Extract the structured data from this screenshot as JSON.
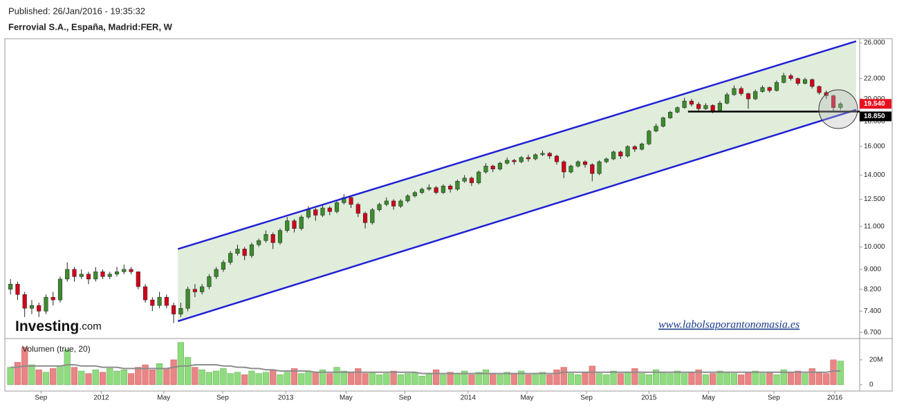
{
  "header": {
    "published": "Published: 26/Jan/2016 - 19:35:32",
    "title": "Ferrovial S.A., España, Madrid:FER, W"
  },
  "chart_data": [
    {
      "type": "candlestick",
      "log_scale": true,
      "grid": false,
      "up_color": "#3d8b2f",
      "down_color": "#d0021b",
      "xlim": [
        -0.7,
        119.7
      ],
      "ylim": [
        6.51,
        26.43
      ],
      "yticks": [
        {
          "value": 6.7,
          "label": "6.700"
        },
        {
          "value": 7.4,
          "label": "7.400"
        },
        {
          "value": 8.2,
          "label": "8.200"
        },
        {
          "value": 9,
          "label": "9.000"
        },
        {
          "value": 10,
          "label": "10.000"
        },
        {
          "value": 11,
          "label": "11.000"
        },
        {
          "value": 12.5,
          "label": "12.500"
        },
        {
          "value": 14,
          "label": "14.000"
        },
        {
          "value": 16,
          "label": "16.000"
        },
        {
          "value": 18,
          "label": "18.000"
        },
        {
          "value": 20,
          "label": "20.000"
        },
        {
          "value": 22,
          "label": "22.000"
        },
        {
          "value": 26,
          "label": "26.000"
        }
      ],
      "xticks": [
        {
          "value": 4.3,
          "label": "Sep"
        },
        {
          "value": 12.8,
          "label": "2012"
        },
        {
          "value": 21.6,
          "label": "May"
        },
        {
          "value": 29.9,
          "label": "Sep"
        },
        {
          "value": 38.8,
          "label": "2013"
        },
        {
          "value": 47.3,
          "label": "May"
        },
        {
          "value": 55.6,
          "label": "Sep"
        },
        {
          "value": 64.5,
          "label": "2014"
        },
        {
          "value": 72.8,
          "label": "May"
        },
        {
          "value": 81.2,
          "label": "Sep"
        },
        {
          "value": 90.0,
          "label": "2015"
        },
        {
          "value": 98.4,
          "label": "May"
        },
        {
          "value": 107.6,
          "label": "Sep"
        },
        {
          "value": 116.2,
          "label": "2016"
        }
      ],
      "ohlc": [
        [
          8.2,
          8.6,
          8.0,
          8.4
        ],
        [
          8.4,
          8.5,
          7.8,
          8.0
        ],
        [
          8.0,
          8.1,
          7.2,
          7.5
        ],
        [
          7.5,
          7.8,
          7.3,
          7.6
        ],
        [
          7.6,
          7.7,
          7.2,
          7.4
        ],
        [
          7.4,
          8.0,
          7.3,
          7.9
        ],
        [
          7.9,
          8.1,
          7.6,
          7.8
        ],
        [
          7.8,
          8.7,
          7.7,
          8.6
        ],
        [
          8.6,
          9.3,
          8.5,
          9.0
        ],
        [
          9.0,
          9.1,
          8.5,
          8.7
        ],
        [
          8.7,
          9.0,
          8.6,
          8.8
        ],
        [
          8.8,
          8.9,
          8.4,
          8.6
        ],
        [
          8.6,
          9.1,
          8.5,
          8.9
        ],
        [
          8.9,
          9.0,
          8.6,
          8.7
        ],
        [
          8.7,
          8.9,
          8.6,
          8.8
        ],
        [
          8.8,
          9.1,
          8.7,
          8.9
        ],
        [
          8.9,
          9.2,
          8.8,
          9.0
        ],
        [
          9.0,
          9.1,
          8.8,
          8.9
        ],
        [
          8.9,
          8.9,
          8.2,
          8.3
        ],
        [
          8.3,
          8.4,
          7.7,
          7.8
        ],
        [
          7.8,
          7.9,
          7.4,
          7.6
        ],
        [
          7.6,
          8.1,
          7.5,
          7.9
        ],
        [
          7.9,
          8.0,
          7.5,
          7.6
        ],
        [
          7.6,
          7.7,
          7.0,
          7.3
        ],
        [
          7.3,
          7.7,
          7.2,
          7.5
        ],
        [
          7.5,
          8.3,
          7.4,
          8.2
        ],
        [
          8.2,
          8.4,
          7.9,
          8.1
        ],
        [
          8.1,
          8.4,
          8.0,
          8.3
        ],
        [
          8.3,
          8.8,
          8.2,
          8.7
        ],
        [
          8.7,
          9.1,
          8.6,
          9.0
        ],
        [
          9.0,
          9.4,
          8.9,
          9.3
        ],
        [
          9.3,
          9.8,
          9.2,
          9.7
        ],
        [
          9.7,
          10.1,
          9.6,
          9.9
        ],
        [
          9.9,
          10.0,
          9.4,
          9.6
        ],
        [
          9.6,
          10.2,
          9.5,
          10.1
        ],
        [
          10.1,
          10.4,
          10.0,
          10.3
        ],
        [
          10.3,
          10.8,
          10.2,
          10.6
        ],
        [
          10.6,
          10.7,
          9.9,
          10.2
        ],
        [
          10.2,
          10.9,
          10.1,
          10.8
        ],
        [
          10.8,
          11.5,
          10.7,
          11.3
        ],
        [
          11.3,
          11.4,
          10.7,
          10.9
        ],
        [
          10.9,
          11.6,
          10.8,
          11.5
        ],
        [
          11.5,
          12.1,
          11.4,
          11.9
        ],
        [
          11.9,
          12.0,
          11.3,
          11.6
        ],
        [
          11.6,
          12.2,
          11.5,
          12.0
        ],
        [
          12.0,
          12.1,
          11.6,
          11.8
        ],
        [
          11.8,
          12.4,
          11.7,
          12.3
        ],
        [
          12.3,
          12.8,
          12.2,
          12.6
        ],
        [
          12.6,
          12.7,
          12.0,
          12.2
        ],
        [
          12.2,
          12.3,
          11.5,
          11.7
        ],
        [
          11.7,
          11.8,
          10.9,
          11.2
        ],
        [
          11.2,
          12.0,
          11.1,
          11.9
        ],
        [
          11.9,
          12.3,
          11.8,
          12.2
        ],
        [
          12.2,
          12.6,
          12.1,
          12.4
        ],
        [
          12.4,
          12.5,
          11.9,
          12.1
        ],
        [
          12.1,
          12.5,
          12.0,
          12.4
        ],
        [
          12.4,
          12.8,
          12.3,
          12.7
        ],
        [
          12.7,
          13.0,
          12.6,
          12.9
        ],
        [
          12.9,
          13.2,
          12.8,
          13.1
        ],
        [
          13.1,
          13.4,
          13.0,
          13.2
        ],
        [
          13.2,
          13.3,
          12.8,
          12.9
        ],
        [
          12.9,
          13.4,
          12.8,
          13.3
        ],
        [
          13.3,
          13.4,
          12.9,
          13.1
        ],
        [
          13.1,
          13.7,
          13.0,
          13.6
        ],
        [
          13.6,
          14.0,
          13.5,
          13.8
        ],
        [
          13.8,
          13.9,
          13.3,
          13.5
        ],
        [
          13.5,
          14.3,
          13.4,
          14.2
        ],
        [
          14.2,
          14.8,
          14.1,
          14.6
        ],
        [
          14.6,
          14.7,
          14.2,
          14.4
        ],
        [
          14.4,
          14.9,
          14.3,
          14.8
        ],
        [
          14.8,
          15.2,
          14.7,
          15.0
        ],
        [
          15.0,
          15.1,
          14.7,
          14.9
        ],
        [
          14.9,
          15.3,
          14.8,
          15.2
        ],
        [
          15.2,
          15.4,
          14.9,
          15.1
        ],
        [
          15.1,
          15.5,
          15.0,
          15.4
        ],
        [
          15.4,
          15.7,
          15.3,
          15.5
        ],
        [
          15.5,
          15.6,
          15.1,
          15.3
        ],
        [
          15.3,
          15.4,
          14.7,
          14.9
        ],
        [
          14.9,
          15.0,
          13.8,
          14.2
        ],
        [
          14.2,
          14.7,
          14.1,
          14.6
        ],
        [
          14.6,
          15.0,
          14.5,
          14.9
        ],
        [
          14.9,
          15.0,
          14.5,
          14.7
        ],
        [
          14.7,
          14.8,
          13.6,
          14.1
        ],
        [
          14.1,
          15.0,
          14.0,
          14.9
        ],
        [
          14.9,
          15.2,
          14.8,
          15.1
        ],
        [
          15.1,
          15.7,
          15.0,
          15.6
        ],
        [
          15.6,
          15.7,
          15.1,
          15.3
        ],
        [
          15.3,
          16.1,
          15.2,
          16.0
        ],
        [
          16.0,
          16.1,
          15.6,
          15.8
        ],
        [
          15.8,
          16.3,
          15.7,
          16.2
        ],
        [
          16.2,
          17.3,
          16.1,
          17.2
        ],
        [
          17.2,
          17.8,
          17.1,
          17.6
        ],
        [
          17.6,
          18.4,
          17.5,
          18.3
        ],
        [
          18.3,
          18.9,
          18.2,
          18.8
        ],
        [
          18.8,
          19.3,
          18.7,
          19.2
        ],
        [
          19.2,
          20.1,
          19.1,
          19.8
        ],
        [
          19.8,
          20.0,
          19.3,
          19.5
        ],
        [
          19.5,
          19.7,
          18.8,
          19.1
        ],
        [
          19.1,
          19.6,
          19.0,
          19.4
        ],
        [
          19.4,
          19.5,
          18.7,
          18.9
        ],
        [
          18.9,
          19.8,
          18.8,
          19.6
        ],
        [
          19.6,
          20.6,
          19.5,
          20.4
        ],
        [
          20.4,
          21.3,
          20.3,
          21.0
        ],
        [
          21.0,
          21.2,
          20.3,
          20.5
        ],
        [
          20.5,
          20.6,
          19.1,
          20.0
        ],
        [
          20.0,
          20.9,
          19.9,
          20.7
        ],
        [
          20.7,
          21.3,
          20.6,
          21.1
        ],
        [
          21.1,
          21.2,
          20.6,
          20.8
        ],
        [
          20.8,
          21.8,
          20.7,
          21.6
        ],
        [
          21.6,
          22.6,
          21.5,
          22.3
        ],
        [
          22.3,
          22.5,
          21.8,
          22.0
        ],
        [
          22.0,
          22.1,
          21.3,
          21.5
        ],
        [
          21.5,
          22.1,
          21.4,
          21.9
        ],
        [
          21.9,
          22.0,
          21.0,
          21.2
        ],
        [
          21.2,
          21.3,
          20.4,
          20.6
        ],
        [
          20.6,
          20.8,
          20.0,
          20.3
        ],
        [
          20.3,
          20.4,
          18.9,
          19.2
        ],
        [
          19.2,
          19.7,
          19.0,
          19.54
        ]
      ],
      "channel": {
        "color": "#1f1fd6",
        "fill": "#d9ead3",
        "upper": [
          [
            23.6,
            9.9
          ],
          [
            119.2,
            26.2
          ]
        ],
        "lower": [
          [
            23.6,
            7.06
          ],
          [
            119.2,
            19.0
          ]
        ]
      },
      "support": {
        "from": 95.5,
        "value": 18.85,
        "label": "18.850",
        "color": "#000000"
      },
      "last_price": {
        "value": 19.54,
        "label": "19.540",
        "color": "#e8101e"
      },
      "logo": {
        "brand": "Investing",
        ".com": ".com"
      },
      "website": "www.labolsaporantonomasia.es"
    },
    {
      "type": "bar",
      "label": "Volumen (true, 20)",
      "up_color": "#8fdc7f",
      "down_color": "#e98585",
      "ma_color": "#8c8c8c",
      "ylim": [
        -5.1,
        37.1
      ],
      "yticks": [
        0,
        {
          "value": 20,
          "label": "20M"
        }
      ],
      "values": [
        14,
        18,
        30,
        16,
        12,
        10,
        13,
        15,
        28,
        14,
        11,
        9,
        12,
        10,
        13,
        11,
        12,
        9,
        14,
        16,
        12,
        17,
        13,
        20,
        34,
        22,
        14,
        12,
        10,
        11,
        13,
        9,
        10,
        8,
        11,
        9,
        10,
        12,
        8,
        10,
        13,
        9,
        11,
        10,
        12,
        9,
        14,
        11,
        10,
        13,
        9,
        10,
        8,
        9,
        11,
        8,
        9,
        10,
        7,
        9,
        12,
        8,
        10,
        9,
        11,
        8,
        10,
        12,
        9,
        8,
        10,
        9,
        11,
        8,
        9,
        10,
        8,
        12,
        14,
        9,
        8,
        10,
        15,
        9,
        8,
        11,
        9,
        10,
        13,
        9,
        8,
        12,
        10,
        9,
        11,
        9,
        10,
        12,
        8,
        9,
        11,
        10,
        9,
        8,
        10,
        11,
        9,
        10,
        8,
        12,
        10,
        11,
        9,
        13,
        10,
        9,
        20,
        19
      ],
      "ma": [
        14,
        14,
        15,
        15,
        15,
        15,
        15,
        15,
        16,
        16,
        15,
        15,
        15,
        14,
        14,
        14,
        13,
        13,
        13,
        13,
        13,
        13,
        13,
        14,
        15,
        15,
        16,
        16,
        16,
        16,
        15,
        15,
        14,
        14,
        13,
        13,
        12,
        12,
        11,
        11,
        11,
        11,
        11,
        10,
        10,
        10,
        10,
        10,
        10,
        10,
        10,
        10,
        10,
        10,
        10,
        10,
        10,
        10,
        9,
        9,
        9,
        9,
        9,
        9,
        9,
        9,
        9,
        9,
        9,
        9,
        9,
        9,
        9,
        9,
        9,
        9,
        9,
        9,
        10,
        10,
        10,
        10,
        10,
        10,
        10,
        10,
        10,
        10,
        10,
        10,
        10,
        10,
        10,
        10,
        10,
        10,
        10,
        10,
        10,
        10,
        10,
        10,
        10,
        10,
        10,
        10,
        10,
        10,
        10,
        10,
        10,
        10,
        10,
        10,
        10,
        10,
        11,
        11
      ]
    }
  ]
}
